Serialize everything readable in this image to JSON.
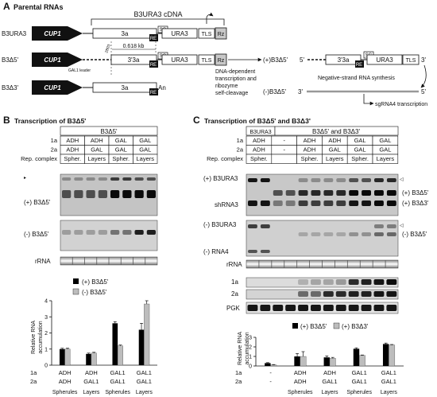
{
  "panel_a": {
    "letter": "A",
    "title": "Parental RNAs",
    "cdna_label": "B3URA3 cDNA",
    "rows": [
      {
        "name": "B3URA3",
        "promoter": "CUP1",
        "boxes": [
          "3a",
          "URA3",
          "TLS",
          "Rz"
        ],
        "tags": [
          "RE",
          "SG"
        ]
      },
      {
        "name": "B3Δ5'",
        "promoter": "CUP1",
        "boxes": [
          "3'3a",
          "URA3",
          "TLS",
          "Rz"
        ],
        "tags": [
          "RE",
          "SG"
        ]
      },
      {
        "name": "B3Δ3'",
        "promoter": "CUP1",
        "boxes": [
          "3a"
        ],
        "tags": [
          "RE"
        ],
        "tail": "An"
      }
    ],
    "gal1_leader": "GAL1 leader",
    "nt_label": "2803",
    "kb_label": "0.618 kb",
    "process_label": [
      "DNA-dependent",
      "transcription and",
      "ribozyme",
      "self-cleavage"
    ],
    "plus_label": "(+)B3Δ5'",
    "five_prime": "5'",
    "three_prime": "3'",
    "plus_boxes": [
      "3'3a",
      "URA3",
      "TLS"
    ],
    "plus_tags": [
      "RE",
      "SG"
    ],
    "neg_synthesis": "Negative-strand RNA synthesis",
    "minus_label": "(-)B3Δ5'",
    "sg_transcription": "sgRNA4 transcription"
  },
  "panel_b": {
    "letter": "B",
    "title": "Transcription of  B3Δ5'",
    "header": "B3Δ5'",
    "rows": [
      {
        "label": "1a",
        "cells": [
          "ADH",
          "ADH",
          "GAL",
          "GAL"
        ]
      },
      {
        "label": "2a",
        "cells": [
          "ADH",
          "GAL",
          "GAL",
          "GAL"
        ]
      },
      {
        "label": "Rep. complex",
        "cells": [
          "Spher.",
          "Layers",
          "Spher.",
          "Layers"
        ]
      }
    ],
    "blot_plus": "(+) B3Δ5'",
    "blot_minus": "(-) B3Δ5'",
    "rrna": "rRNA",
    "legend_plus": "(+) B3Δ5'",
    "legend_minus": "(-)  B3Δ5'",
    "ylabel": [
      "Relative RNA",
      "accumulation"
    ],
    "xrows": {
      "r1": [
        "1a",
        "ADH",
        "ADH",
        "GAL1",
        "GAL1"
      ],
      "r2": [
        "2a",
        "ADH",
        "GAL1",
        "GAL1",
        "GAL1"
      ],
      "r3": [
        "Spherules",
        "Layers",
        "Spherules",
        "Layers"
      ]
    }
  },
  "panel_c": {
    "letter": "C",
    "title": "Transcription of  B3Δ5' and B3Δ3'",
    "header_left": "B3URA3",
    "header_right": "B3Δ5'  and B3Δ3'",
    "rows": [
      {
        "label": "1a",
        "cells": [
          "ADH",
          "-",
          "ADH",
          "ADH",
          "GAL",
          "GAL"
        ]
      },
      {
        "label": "2a",
        "cells": [
          "ADH",
          "-",
          "ADH",
          "GAL",
          "GAL",
          "GAL"
        ]
      },
      {
        "label": "Rep. complex",
        "cells": [
          "Spher.",
          "",
          "Spher.",
          "Layers",
          "Spher.",
          "Layers"
        ]
      }
    ],
    "blot1_left": [
      "(+) B3URA3",
      "shRNA3"
    ],
    "blot1_right": [
      "(+) B3Δ5'",
      "(+) B3Δ3'"
    ],
    "blot2_left": [
      "(-) B3URA3",
      "(-) RNA4"
    ],
    "blot2_right": [
      "(-) B3Δ5'"
    ],
    "rrna": "rRNA",
    "prot": [
      "1a",
      "2a",
      "PGK"
    ],
    "legend_plus5": "(+) B3Δ5'",
    "legend_plus3": "(+)  B3Δ3'",
    "ylabel": [
      "Relative RNA",
      "accumulation"
    ],
    "xrows": {
      "r1": [
        "1a",
        "-",
        "ADH",
        "ADH",
        "GAL1",
        "GAL1"
      ],
      "r2": [
        "2a",
        "-",
        "ADH",
        "GAL1",
        "GAL1",
        "GAL1"
      ],
      "r3": [
        "Spherules",
        "Layers",
        "Spherules",
        "Layers"
      ]
    }
  },
  "chart_data": [
    {
      "type": "bar",
      "categories": [
        "ADH/ADH Spherules",
        "ADH/GAL1 Layers",
        "GAL1/GAL1 Spherules",
        "GAL1/GAL1 Layers"
      ],
      "series": [
        {
          "name": "(+) B3Δ5'",
          "values": [
            1.0,
            0.7,
            2.6,
            2.2
          ]
        },
        {
          "name": "(-)  B3Δ5'",
          "values": [
            1.0,
            0.75,
            1.2,
            3.8
          ]
        }
      ],
      "errors": [
        [
          0.05,
          0.05,
          0.1,
          0.4
        ],
        [
          0.05,
          0.05,
          0.05,
          0.2
        ]
      ],
      "ylim": [
        0,
        4
      ],
      "yticks": [
        "0",
        "1",
        "2",
        "3",
        "4"
      ],
      "colors": [
        "#000000",
        "#bdbdbd"
      ]
    },
    {
      "type": "bar",
      "categories": [
        "-/-",
        "ADH/ADH Spherules",
        "ADH/GAL1 Layers",
        "GAL1/GAL1 Spherules",
        "GAL1/GAL1 Layers"
      ],
      "series": [
        {
          "name": "(+) B3Δ5'",
          "values": [
            0.3,
            1.0,
            0.9,
            1.8,
            2.3
          ]
        },
        {
          "name": "(+)  B3Δ3'",
          "values": [
            0.1,
            1.0,
            0.8,
            1.1,
            2.2
          ]
        }
      ],
      "errors": [
        [
          0.05,
          0.3,
          0.15,
          0.1,
          0.1
        ],
        [
          0.05,
          0.5,
          0.1,
          0.05,
          0.05
        ]
      ],
      "ylim": [
        0,
        3
      ],
      "yticks": [
        "0",
        "1",
        "2",
        "3"
      ],
      "colors": [
        "#000000",
        "#bdbdbd"
      ]
    }
  ]
}
